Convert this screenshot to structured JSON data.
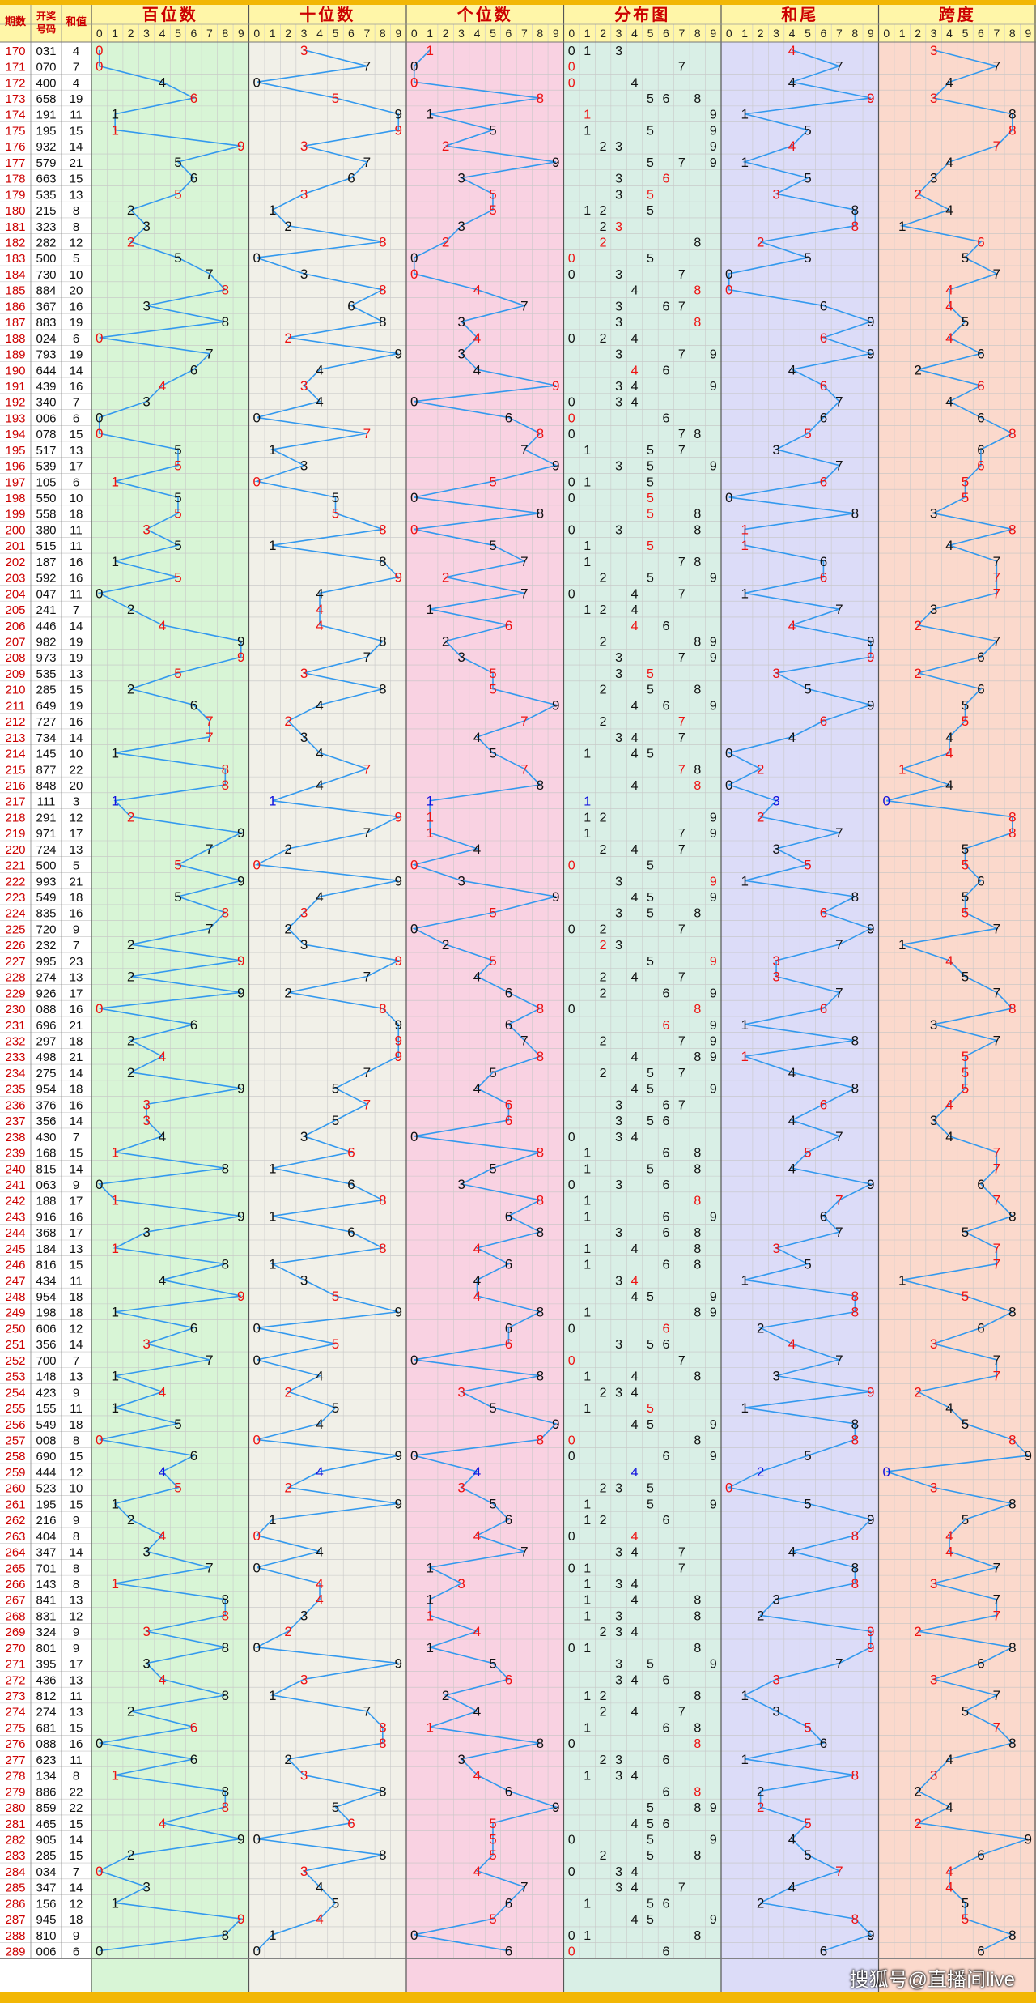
{
  "chart_data": {
    "type": "table",
    "headers": {
      "period": "期数",
      "draw": "开奖号码",
      "sum": "和值",
      "hundreds": "百位数",
      "tens": "十位数",
      "ones": "个位数",
      "distribution": "分布图",
      "sum_tail": "和尾",
      "span": "跨度"
    },
    "digit_labels": [
      "0",
      "1",
      "2",
      "3",
      "4",
      "5",
      "6",
      "7",
      "8",
      "9"
    ],
    "periods": [
      170,
      171,
      172,
      173,
      174,
      175,
      176,
      177,
      178,
      179,
      180,
      181,
      182,
      183,
      184,
      185,
      186,
      187,
      188,
      189,
      190,
      191,
      192,
      193,
      194,
      195,
      196,
      197,
      198,
      199,
      200,
      201,
      202,
      203,
      204,
      205,
      206,
      207,
      208,
      209,
      210,
      211,
      212,
      213,
      214,
      215,
      216,
      217,
      218,
      219,
      220,
      221,
      222,
      223,
      224,
      225,
      226,
      227,
      228,
      229,
      230,
      231,
      232,
      233,
      234,
      235,
      236,
      237,
      238,
      239,
      240,
      241,
      242,
      243,
      244,
      245,
      246,
      247,
      248,
      249,
      250,
      251,
      252,
      253,
      254,
      255,
      256,
      257,
      258,
      259,
      260,
      261,
      262,
      263,
      264,
      265,
      266,
      267,
      268,
      269,
      270,
      271,
      272,
      273,
      274,
      275,
      276,
      277,
      278,
      279,
      280,
      281,
      282,
      283,
      284,
      285,
      286,
      287,
      288,
      289
    ],
    "draws": [
      "031",
      "070",
      "400",
      "658",
      "191",
      "195",
      "932",
      "579",
      "663",
      "535",
      "215",
      "323",
      "282",
      "500",
      "730",
      "884",
      "367",
      "883",
      "024",
      "793",
      "644",
      "439",
      "340",
      "006",
      "078",
      "517",
      "539",
      "105",
      "550",
      "558",
      "380",
      "515",
      "187",
      "592",
      "047",
      "241",
      "446",
      "982",
      "973",
      "535",
      "285",
      "649",
      "727",
      "734",
      "145",
      "877",
      "848",
      "111",
      "291",
      "971",
      "724",
      "500",
      "993",
      "549",
      "835",
      "720",
      "232",
      "995",
      "274",
      "926",
      "088",
      "696",
      "297",
      "498",
      "275",
      "954",
      "376",
      "356",
      "430",
      "168",
      "815",
      "063",
      "188",
      "916",
      "368",
      "184",
      "816",
      "434",
      "954",
      "198",
      "606",
      "356",
      "700",
      "148",
      "423",
      "155",
      "549",
      "008",
      "690",
      "444",
      "523",
      "195",
      "216",
      "404",
      "347",
      "701",
      "143",
      "841",
      "831",
      "324",
      "801",
      "395",
      "436",
      "812",
      "274",
      "681",
      "088",
      "623",
      "134",
      "886",
      "859",
      "465",
      "905",
      "285",
      "034",
      "347",
      "156",
      "945",
      "810",
      "006"
    ],
    "hot_color": "#ee1111",
    "repeat_color": "#1010dd",
    "line_color": "#3399ee",
    "panel_colors": {
      "hundreds": "#d8f5d6",
      "tens": "#f1f0e8",
      "ones": "#f9d2e2",
      "distribution": "#d9efe6",
      "sum_tail": "#dcdcf8",
      "span": "#fbd9cc",
      "header": "#fff6a8"
    }
  },
  "watermark": "搜狐号@直播间live"
}
